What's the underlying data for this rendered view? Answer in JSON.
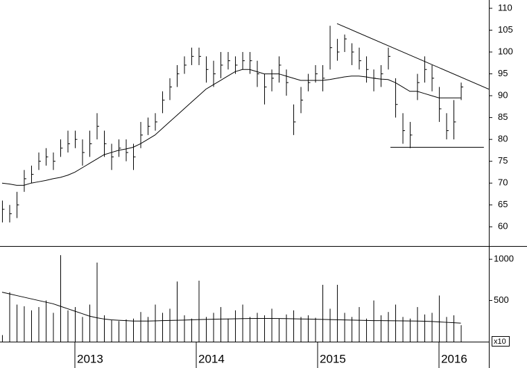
{
  "chart_data": {
    "type": "ohlc",
    "color": "#000000",
    "x": [
      2012.4,
      2012.46,
      2012.52,
      2012.58,
      2012.64,
      2012.7,
      2012.76,
      2012.82,
      2012.88,
      2012.94,
      2013.0,
      2013.06,
      2013.12,
      2013.18,
      2013.24,
      2013.3,
      2013.36,
      2013.42,
      2013.48,
      2013.54,
      2013.6,
      2013.66,
      2013.72,
      2013.78,
      2013.84,
      2013.9,
      2013.96,
      2014.02,
      2014.08,
      2014.14,
      2014.2,
      2014.26,
      2014.32,
      2014.38,
      2014.44,
      2014.5,
      2014.56,
      2014.62,
      2014.68,
      2014.74,
      2014.8,
      2014.86,
      2014.92,
      2014.98,
      2015.04,
      2015.1,
      2015.16,
      2015.22,
      2015.28,
      2015.34,
      2015.4,
      2015.46,
      2015.52,
      2015.58,
      2015.64,
      2015.7,
      2015.76,
      2015.82,
      2015.88,
      2015.94,
      2016.0,
      2016.06,
      2016.12,
      2016.18
    ],
    "high": [
      66,
      65,
      68,
      73,
      74,
      77,
      78,
      77,
      80,
      82,
      82,
      80,
      82,
      86,
      82,
      79,
      80,
      80,
      79,
      84,
      85,
      86,
      91,
      94,
      97,
      99,
      101,
      101,
      99,
      98,
      100,
      100,
      99,
      100,
      100,
      98,
      95,
      96,
      99,
      96,
      88,
      92,
      95,
      97,
      97,
      106,
      103,
      104,
      102,
      101,
      99,
      96,
      97,
      101,
      94,
      86,
      84,
      95,
      99,
      97,
      92,
      86,
      89,
      93
    ],
    "low": [
      61,
      61,
      62,
      68,
      70,
      73,
      74,
      73,
      76,
      77,
      78,
      74,
      76,
      80,
      76,
      73,
      76,
      75,
      73,
      78,
      81,
      82,
      86,
      89,
      92,
      95,
      97,
      97,
      93,
      92,
      94,
      96,
      95,
      96,
      95,
      92,
      88,
      91,
      93,
      90,
      81,
      86,
      91,
      93,
      91,
      96,
      98,
      100,
      97,
      96,
      93,
      91,
      92,
      96,
      85,
      79,
      78,
      89,
      93,
      91,
      84,
      80,
      80,
      89
    ],
    "close": [
      64,
      63,
      65,
      71,
      72,
      75,
      76,
      75,
      78,
      79,
      80,
      77,
      79,
      83,
      79,
      76,
      78,
      77,
      76,
      81,
      83,
      84,
      89,
      92,
      95,
      97,
      99,
      99,
      96,
      95,
      97,
      98,
      97,
      98,
      98,
      95,
      92,
      94,
      97,
      93,
      84,
      89,
      93,
      95,
      94,
      101,
      100,
      103,
      100,
      98,
      96,
      94,
      95,
      99,
      88,
      82,
      81,
      93,
      96,
      94,
      87,
      82,
      84,
      92
    ],
    "moving_average": [
      70,
      69.8,
      69.5,
      69.5,
      70,
      70.3,
      70.6,
      71,
      71.3,
      71.8,
      72.5,
      73.5,
      74.5,
      75.5,
      76.5,
      77,
      77.5,
      77.8,
      78.2,
      79,
      80,
      81,
      82.5,
      84,
      85.5,
      87,
      88.5,
      90,
      91.5,
      92.5,
      93.5,
      94.5,
      95.5,
      96,
      96,
      95.5,
      95,
      95,
      95,
      94.5,
      94,
      93.5,
      93.5,
      93.5,
      93.5,
      93.7,
      94,
      94.3,
      94.5,
      94.5,
      94.3,
      94,
      93.8,
      93.7,
      93,
      92,
      91,
      91,
      90.5,
      90,
      89.5,
      89.5,
      89.5,
      89.5
    ],
    "volume": [
      80,
      600,
      450,
      430,
      380,
      420,
      500,
      350,
      1050,
      380,
      420,
      300,
      450,
      960,
      320,
      260,
      250,
      270,
      280,
      360,
      300,
      450,
      350,
      400,
      730,
      320,
      280,
      740,
      300,
      350,
      420,
      280,
      380,
      450,
      300,
      350,
      320,
      400,
      280,
      330,
      380,
      300,
      320,
      290,
      690,
      400,
      690,
      350,
      300,
      420,
      280,
      500,
      320,
      360,
      450,
      300,
      280,
      420,
      330,
      350,
      560,
      300,
      320,
      200
    ],
    "volume_average": [
      600,
      580,
      560,
      540,
      520,
      500,
      480,
      460,
      430,
      400,
      370,
      340,
      310,
      290,
      275,
      265,
      260,
      255,
      250,
      250,
      250,
      252,
      255,
      258,
      260,
      262,
      265,
      268,
      270,
      272,
      274,
      276,
      278,
      280,
      281,
      282,
      282,
      282,
      281,
      280,
      278,
      276,
      274,
      272,
      270,
      268,
      266,
      264,
      262,
      260,
      258,
      256,
      255,
      254,
      253,
      252,
      251,
      250,
      248,
      245,
      240,
      235,
      230,
      225
    ],
    "xlim": [
      2012.383,
      2016.411
    ],
    "xticks": [
      2013,
      2014,
      2015,
      2016
    ],
    "ylim": [
      55.6,
      111.9
    ],
    "yticks": [
      60,
      65,
      70,
      75,
      80,
      85,
      90,
      95,
      100,
      105,
      110
    ],
    "volume_ylim": [
      0,
      1144
    ],
    "volume_yticks": [
      500,
      1000
    ],
    "volume_unit": "x10",
    "trendlines": [
      {
        "x": [
          2015.16,
          2016.41
        ],
        "y": [
          106.5,
          91.5
        ]
      },
      {
        "x": [
          2015.6,
          2016.37
        ],
        "y": [
          78.2,
          78.2
        ]
      }
    ]
  }
}
